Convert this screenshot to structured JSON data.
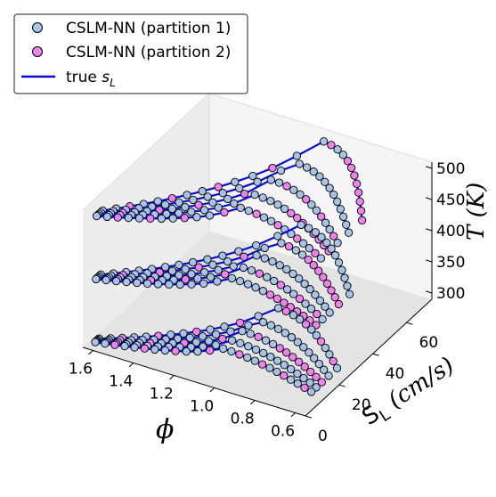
{
  "chart_data": {
    "type": "scatter",
    "projection": "3d",
    "title": "",
    "xlabel": "ϕ",
    "ylabel_main": "S",
    "ylabel_sub": "L",
    "ylabel_unit": " (cm/s)",
    "zlabel": "T (K)",
    "xlim": [
      0.55,
      1.65
    ],
    "ylim": [
      0,
      75
    ],
    "zlim": [
      290,
      510
    ],
    "x_ticks": [
      "0.6",
      "0.8",
      "1.0",
      "1.2",
      "1.4",
      "1.6"
    ],
    "y_ticks": [
      "0",
      "20",
      "40",
      "60"
    ],
    "z_ticks": [
      "300",
      "350",
      "400",
      "450",
      "500"
    ],
    "temperatures": [
      300,
      400,
      500
    ],
    "pressure_curve_peaks": [
      {
        "peak": 60,
        "peak_phi": 1.08
      },
      {
        "peak": 48,
        "peak_phi": 1.09
      },
      {
        "peak": 38,
        "peak_phi": 1.1
      },
      {
        "peak": 30,
        "peak_phi": 1.11
      },
      {
        "peak": 23,
        "peak_phi": 1.12
      }
    ],
    "phi_range": [
      0.6,
      1.6
    ],
    "series": [
      {
        "name": "CSLM-NN (partition 1)",
        "marker": "circle",
        "color": "#a7c4e8"
      },
      {
        "name": "CSLM-NN (partition 2)",
        "marker": "circle",
        "color": "#ee82ee"
      },
      {
        "name": "true s_L",
        "marker": "line",
        "color": "#0a0adc"
      }
    ],
    "legend": {
      "placement": "top-left",
      "entries": [
        {
          "text": "CSLM-NN (partition 1)",
          "math": ""
        },
        {
          "text": "CSLM-NN (partition 2)",
          "math": ""
        },
        {
          "text": "true ",
          "math": "s",
          "sub": "L"
        }
      ]
    },
    "grid": false
  }
}
